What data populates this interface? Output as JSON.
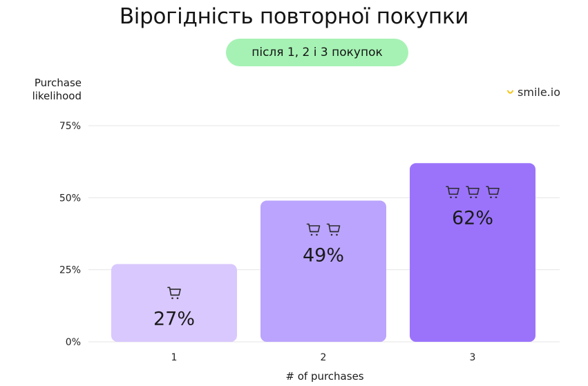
{
  "title": "Вірогідність повторної покупки",
  "subtitle": "після 1, 2 і 3 покупок",
  "brand": "smile.io",
  "colors": {
    "pill": "#a6f2b4",
    "bar_1": "#d9c8fd",
    "bar_2": "#bba4fd",
    "bar_3": "#9b73fb",
    "grid": "#e4e4e4",
    "brand_accent": "#f5c518"
  },
  "chart_data": {
    "type": "bar",
    "title": "Вірогідність повторної покупки",
    "subtitle": "після 1, 2 і 3 покупок",
    "xlabel": "# of purchases",
    "ylabel": "Purchase likelihood",
    "categories": [
      "1",
      "2",
      "3"
    ],
    "values": [
      27,
      49,
      62
    ],
    "data_labels": [
      "27%",
      "49%",
      "62%"
    ],
    "icon_counts": [
      1,
      2,
      3
    ],
    "icon": "shopping-cart-icon",
    "ylim": [
      0,
      75
    ],
    "yticks": [
      0,
      25,
      50,
      75
    ],
    "ytick_labels": [
      "0%",
      "25%",
      "50%",
      "75%"
    ],
    "grid": true
  }
}
